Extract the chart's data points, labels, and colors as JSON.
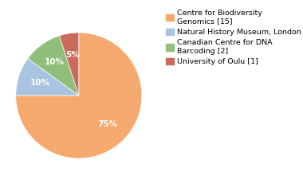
{
  "labels": [
    "Centre for Biodiversity\nGenomics [15]",
    "Natural History Museum, London [2]",
    "Canadian Centre for DNA\nBarcoding [2]",
    "University of Oulu [1]"
  ],
  "values": [
    75,
    10,
    10,
    5
  ],
  "colors": [
    "#F5A96F",
    "#A8C4E0",
    "#8FBF7A",
    "#C96B5A"
  ],
  "startangle": 90,
  "background_color": "#ffffff",
  "text_color": "#ffffff",
  "fontsize": 7.5,
  "legend_fontsize": 6.8,
  "figsize": [
    3.8,
    2.4
  ],
  "dpi": 100
}
